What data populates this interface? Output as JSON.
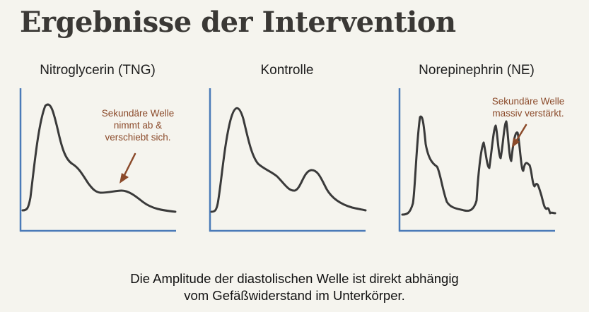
{
  "title": "Ergebnisse der Intervention",
  "panels": [
    {
      "id": "tng",
      "label": "Nitroglycerin (TNG)",
      "annotation": [
        "Sekundäre Welle",
        "nimmt ab &",
        "verschiebt sich."
      ]
    },
    {
      "id": "ctrl",
      "label": "Kontrolle"
    },
    {
      "id": "ne",
      "label": "Norepinephrin (NE)",
      "annotation": [
        "Sekundäre Welle",
        "massiv verstärkt."
      ]
    }
  ],
  "caption": [
    "Die Amplitude der diastolischen Welle ist direkt abhängig",
    "vom Gefäßwiderstand im Unterkörper."
  ],
  "colors": {
    "background": "#f5f4ee",
    "axis": "#4a7ab8",
    "waveform": "#3a3a3a",
    "annotation": "#8b4a2a",
    "title": "#3a3835"
  }
}
